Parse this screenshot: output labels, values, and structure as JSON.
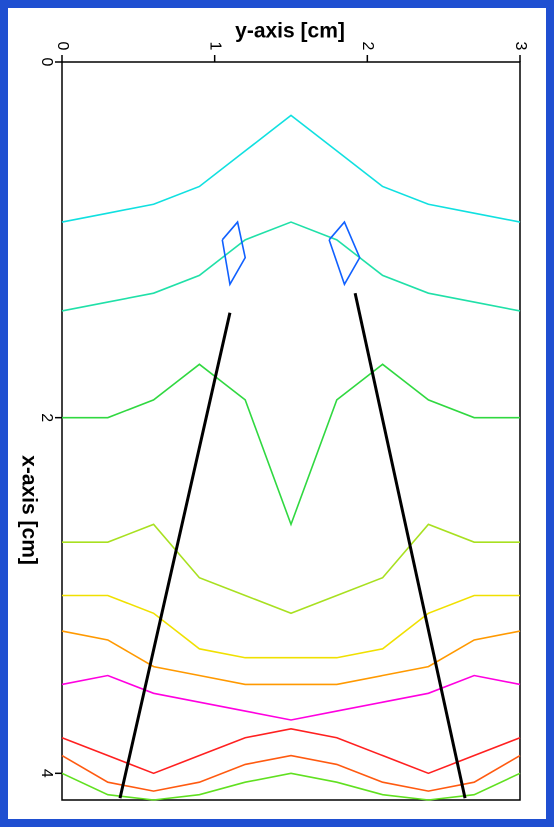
{
  "chart_data": {
    "type": "contour",
    "ylabel": "y-axis [cm]",
    "xlabel": "x-axis [cm]",
    "ylim": [
      0,
      3
    ],
    "yticks": [
      0,
      1,
      2,
      3
    ],
    "xlim": [
      0,
      4.15
    ],
    "xticks": [
      0,
      2,
      4
    ],
    "series": [
      {
        "color": "#10e0e0",
        "y": [
          0,
          0.3,
          0.6,
          0.9,
          1.2,
          1.5,
          1.8,
          2.1,
          2.4,
          2.7,
          3
        ],
        "x": [
          0.9,
          0.85,
          0.8,
          0.7,
          0.5,
          0.3,
          0.5,
          0.7,
          0.8,
          0.85,
          0.9
        ]
      },
      {
        "color": "#20e0a8",
        "y": [
          0,
          0.3,
          0.6,
          0.9,
          1.2,
          1.5,
          1.8,
          2.1,
          2.4,
          2.7,
          3
        ],
        "x": [
          1.4,
          1.35,
          1.3,
          1.2,
          1.0,
          0.9,
          1.0,
          1.2,
          1.3,
          1.35,
          1.4
        ]
      },
      {
        "color": "#30d840",
        "y": [
          0,
          0.3,
          0.6,
          0.9,
          1.2,
          1.5,
          1.8,
          2.1,
          2.4,
          2.7,
          3
        ],
        "x": [
          2.0,
          2.0,
          1.9,
          1.7,
          1.9,
          2.6,
          1.9,
          1.7,
          1.9,
          2.0,
          2.0
        ]
      },
      {
        "color": "#a8e020",
        "y": [
          0,
          0.3,
          0.6,
          0.9,
          1.2,
          1.5,
          1.8,
          2.1,
          2.4,
          2.7,
          3
        ],
        "x": [
          2.7,
          2.7,
          2.6,
          2.9,
          3.0,
          3.1,
          3.0,
          2.9,
          2.6,
          2.7,
          2.7
        ]
      },
      {
        "color": "#f0e000",
        "y": [
          0,
          0.3,
          0.6,
          0.9,
          1.2,
          1.5,
          1.8,
          2.1,
          2.4,
          2.7,
          3
        ],
        "x": [
          3.0,
          3.0,
          3.1,
          3.3,
          3.35,
          3.35,
          3.35,
          3.3,
          3.1,
          3.0,
          3.0
        ]
      },
      {
        "color": "#ff9900",
        "y": [
          0,
          0.3,
          0.6,
          0.9,
          1.2,
          1.5,
          1.8,
          2.1,
          2.4,
          2.7,
          3
        ],
        "x": [
          3.2,
          3.25,
          3.4,
          3.45,
          3.5,
          3.5,
          3.5,
          3.45,
          3.4,
          3.25,
          3.2
        ]
      },
      {
        "color": "#ff00e0",
        "y": [
          0,
          0.3,
          0.6,
          0.9,
          1.2,
          1.5,
          1.8,
          2.1,
          2.4,
          2.7,
          3
        ],
        "x": [
          3.5,
          3.45,
          3.55,
          3.6,
          3.65,
          3.7,
          3.65,
          3.6,
          3.55,
          3.45,
          3.5
        ]
      },
      {
        "color": "#ff2020",
        "y": [
          0,
          0.3,
          0.6,
          0.9,
          1.2,
          1.5,
          1.8,
          2.1,
          2.4,
          2.7,
          3
        ],
        "x": [
          3.8,
          3.9,
          4.0,
          3.9,
          3.8,
          3.75,
          3.8,
          3.9,
          4.0,
          3.9,
          3.8
        ]
      },
      {
        "color": "#ff5a10",
        "y": [
          0,
          0.3,
          0.6,
          0.9,
          1.2,
          1.5,
          1.8,
          2.1,
          2.4,
          2.7,
          3
        ],
        "x": [
          3.9,
          4.05,
          4.1,
          4.05,
          3.95,
          3.9,
          3.95,
          4.05,
          4.1,
          4.05,
          3.9
        ]
      },
      {
        "color": "#60e020",
        "y": [
          0,
          0.3,
          0.6,
          0.9,
          1.2,
          1.5,
          1.8,
          2.1,
          2.4,
          2.7,
          3
        ],
        "x": [
          4.0,
          4.12,
          4.15,
          4.12,
          4.05,
          4.0,
          4.05,
          4.12,
          4.15,
          4.12,
          4.0
        ]
      },
      {
        "color": "#1060ff",
        "y": [
          1.05,
          1.15,
          1.2,
          1.1,
          1.05
        ],
        "x": [
          1.0,
          0.9,
          1.1,
          1.25,
          1.0
        ]
      },
      {
        "color": "#1060ff",
        "y": [
          1.75,
          1.85,
          1.95,
          1.85,
          1.75
        ],
        "x": [
          1.0,
          0.9,
          1.1,
          1.25,
          1.0
        ]
      },
      {
        "color": "#000000",
        "y": [
          0.38,
          1.1
        ],
        "x": [
          4.14,
          1.41
        ]
      },
      {
        "color": "#000000",
        "y": [
          2.64,
          1.92
        ],
        "x": [
          4.14,
          1.3
        ]
      }
    ]
  }
}
